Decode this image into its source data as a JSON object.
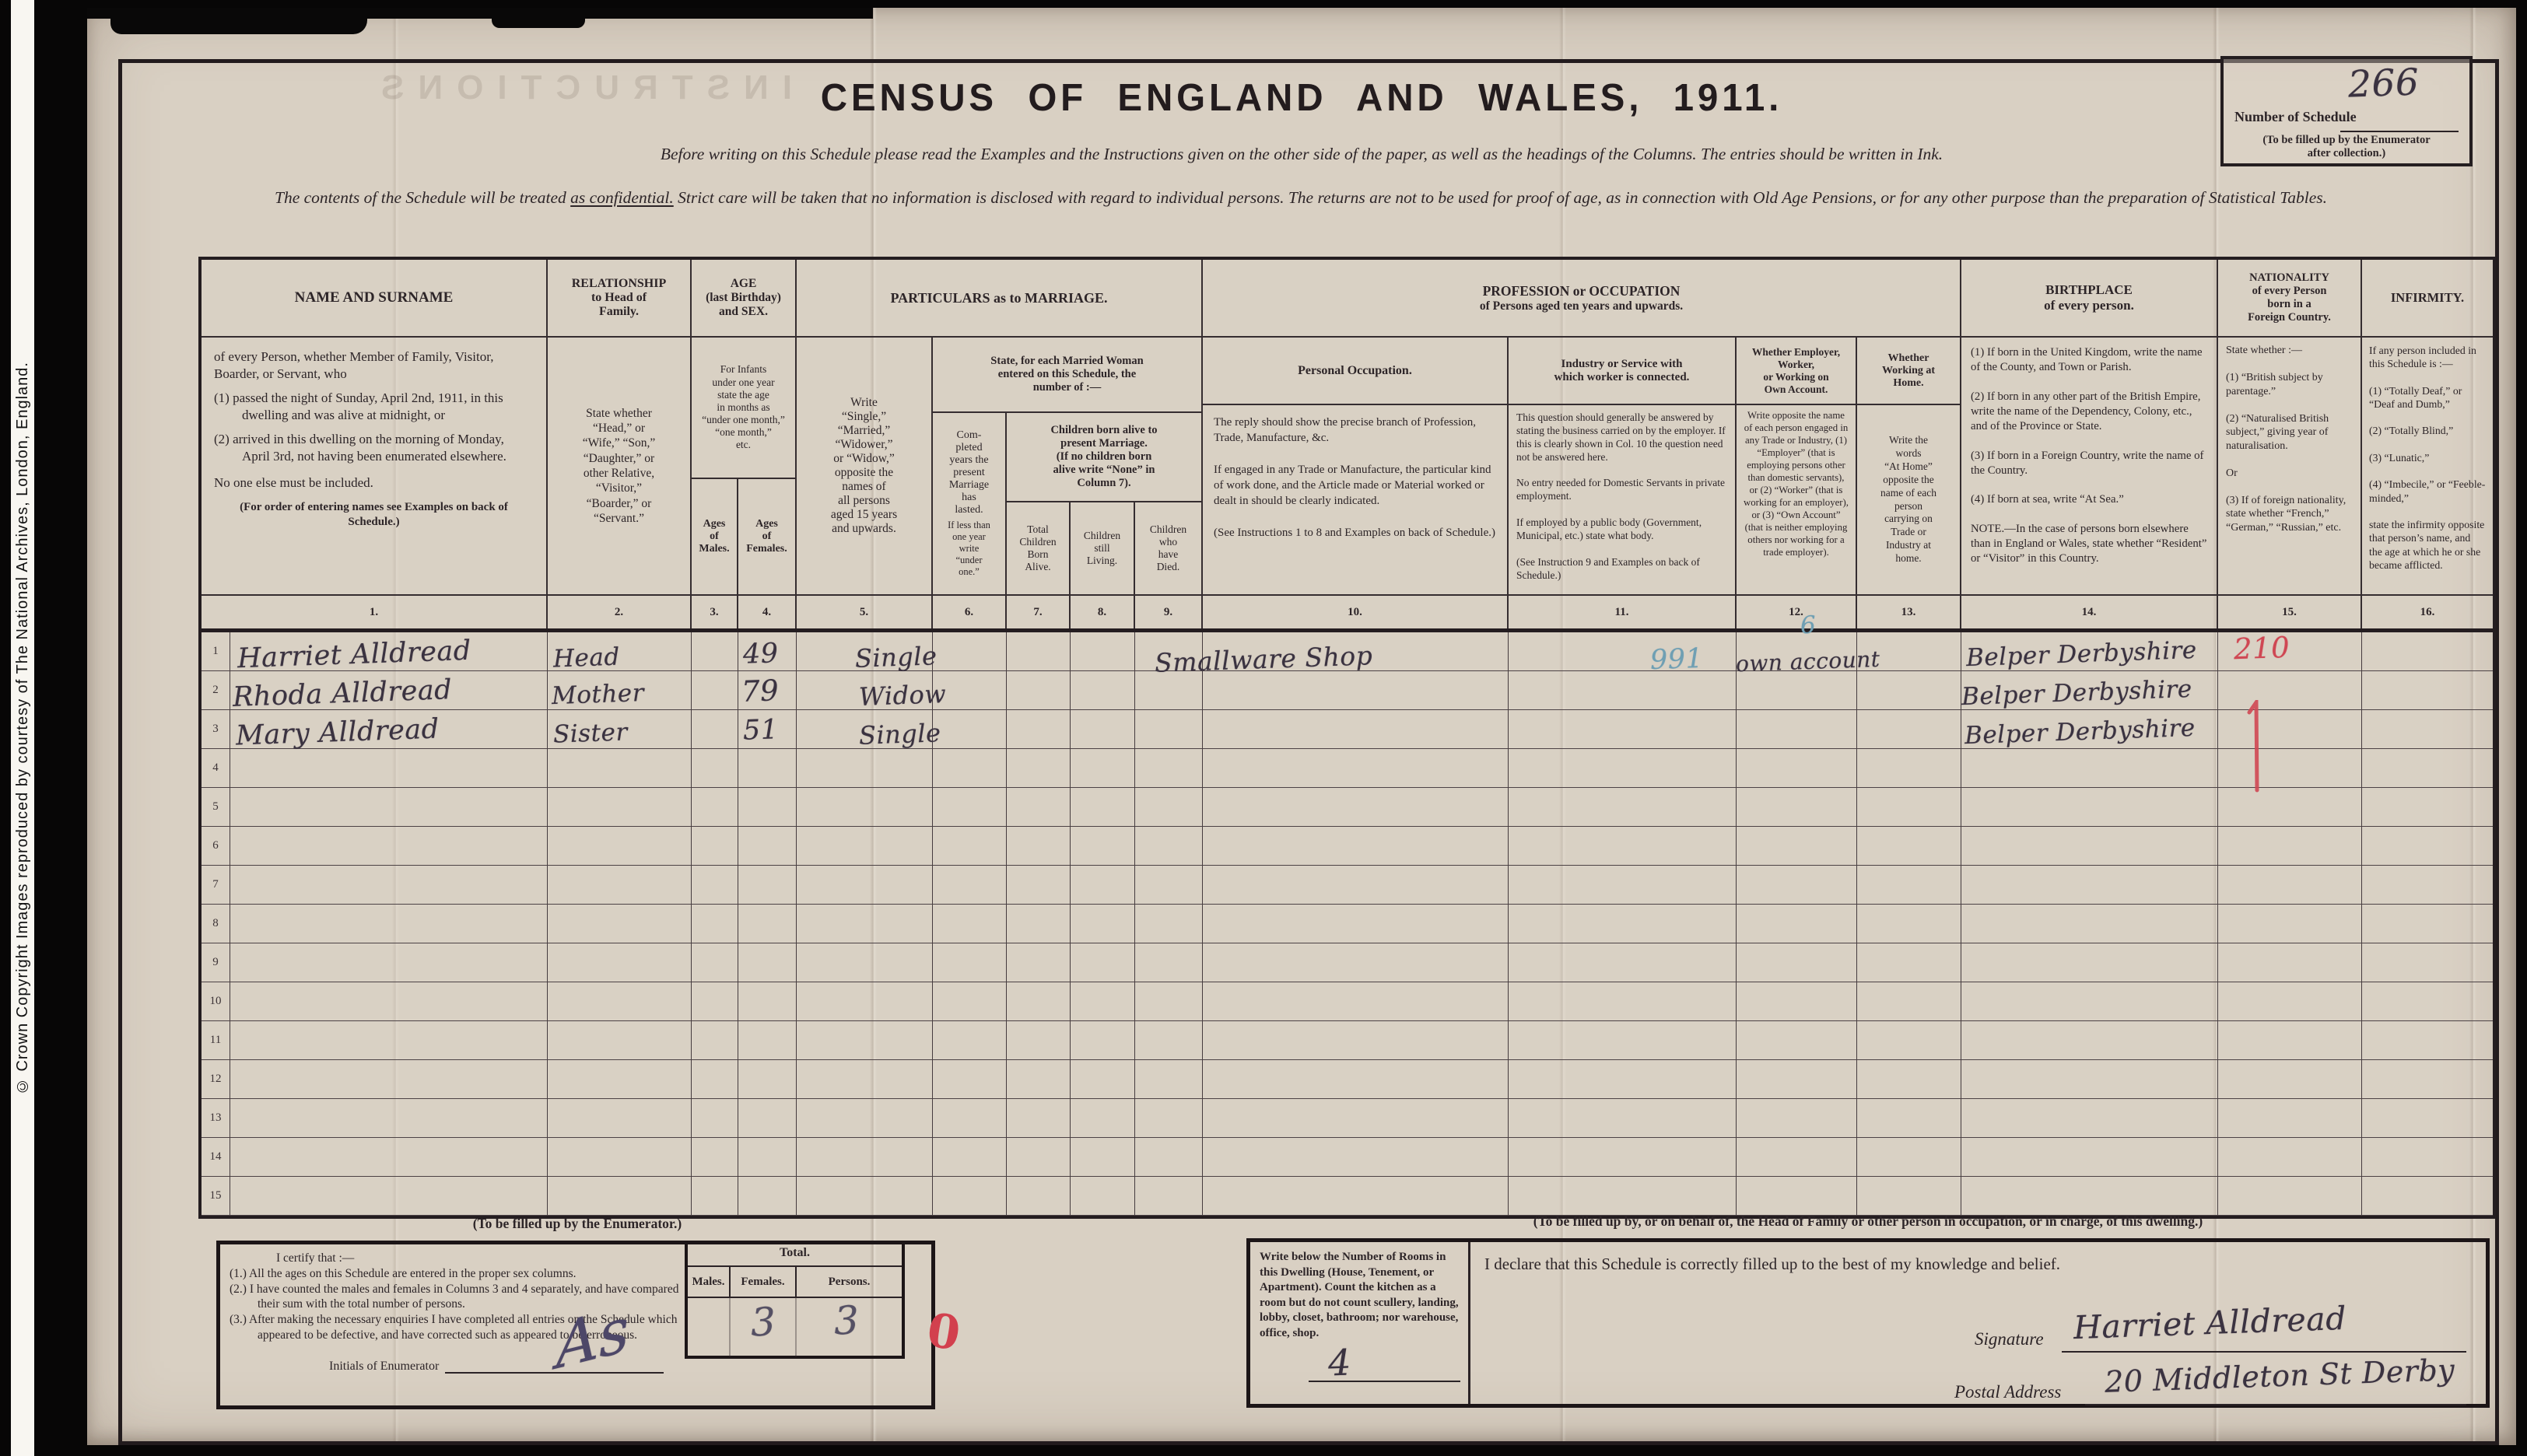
{
  "colors": {
    "paper": "#d9d0c3",
    "ink": "#2d2528",
    "handwriting": "#3a3240",
    "blue_annotation": "#6f9fb3",
    "red_annotation": "#cf4753",
    "pencil": "#8e8779"
  },
  "copyright": "© Crown Copyright Images reproduced by courtesy of The National Archives, London, England.",
  "ghost_text": "INSTRUCTIONS",
  "header": {
    "schedule_box": {
      "label": "Number of Schedule",
      "value": "266",
      "note": "(To be filled up by the Enumerator\nafter collection.)"
    },
    "title": "CENSUS OF ENGLAND AND WALES, 1911.",
    "intro1": "Before writing on this Schedule please read the Examples and the Instructions given on the other side of the paper, as well as the headings of the Columns.  The entries should be written in Ink.",
    "intro2_pre": "The contents of the Schedule will be treated ",
    "intro2_underline": "as confidential.",
    "intro2_post": "  Strict care will be taken that no information is disclosed with regard to individual persons.  The returns are not to be used for proof of age, as in connection with Old Age Pensions, or for any other purpose than the preparation of Statistical Tables."
  },
  "table": {
    "name_group": {
      "title": "NAME AND SURNAME",
      "desc_intro": "of every Person, whether Member of Family, Visitor, Boarder, or Servant, who",
      "item1": "(1) passed the night of Sunday, April 2nd, 1911, in this dwelling and was alive at midnight, or",
      "item2": "(2) arrived in this dwelling on the morning of Monday, April 3rd, not having been enumerated elsewhere.",
      "no_one": "No one else must be included.",
      "note": "(For order of entering names see Examples on back of Schedule.)"
    },
    "relationship": {
      "title": "RELATIONSHIP\nto Head of\nFamily.",
      "desc": "State whether\n“Head,” or\n“Wife,” “Son,”\n“Daughter,” or\nother Relative,\n“Visitor,”\n“Boarder,” or\n“Servant.”"
    },
    "age": {
      "title": "AGE\n(last Birthday)\nand SEX.",
      "infants": "For Infants\nunder one year\nstate the age\nin months as\n“under one month,”\n“one month,”\netc.",
      "males": "Ages\nof\nMales.",
      "females": "Ages\nof\nFemales."
    },
    "marriage": {
      "title": "PARTICULARS as to MARRIAGE.",
      "col5": "Write\n“Single,”\n“Married,”\n“Widower,”\nor “Widow,”\nopposite the\nnames of\nall persons\naged 15 years\nand upwards.",
      "married_woman": "State, for each Married Woman\nentered on this Schedule, the\nnumber of :—",
      "col6_main": "Com-\npleted\nyears the\npresent\nMarriage\nhas\nlasted.",
      "col6_note": "If less than\none year\nwrite\n“under\none.”",
      "children_band": "Children born alive to\npresent Marriage.\n(If no children born\nalive write “None” in\nColumn 7).",
      "col7": "Total\nChildren\nBorn\nAlive.",
      "col8": "Children\nstill\nLiving.",
      "col9": "Children\nwho\nhave\nDied."
    },
    "profession": {
      "title": "PROFESSION or OCCUPATION",
      "subtitle": "of Persons aged ten years and upwards.",
      "col10_title": "Personal Occupation.",
      "col10_desc": [
        "The reply should show the precise branch of Profession, Trade, Manufacture, &c.",
        "If engaged in any Trade or Manufacture, the particular kind of work done, and the Article made or Material worked or dealt in should be clearly indicated.",
        "(See Instructions 1 to 8 and Examples on back of Schedule.)"
      ],
      "col11_title": "Industry or Service with\nwhich worker is connected.",
      "col11_desc": [
        "This question should generally be answered by stating the business carried on by the employer.  If this is clearly shown in Col. 10 the question need not be answered here.",
        "No entry needed for Domestic Servants in private employment.",
        "If employed by a public body (Government, Municipal, etc.) state what body.",
        "(See Instruction 9 and Examples on back of Schedule.)"
      ],
      "col12_title": "Whether Employer,\nWorker,\nor Working on\nOwn Account.",
      "col12_desc": "Write opposite the name of each person engaged in any Trade or Industry, (1) “Employer” (that is employing persons other than domestic servants), or (2) “Worker” (that is working for an employer), or (3) “Own Account” (that is neither employing others nor working for a trade employer).",
      "col13_title": "Whether\nWorking at\nHome.",
      "col13_desc": "Write the\nwords\n“At Home”\nopposite the\nname of each\nperson\ncarrying on\nTrade or\nIndustry at\nhome."
    },
    "birthplace": {
      "title": "BIRTHPLACE\nof every person.",
      "desc": [
        "(1) If born in the United Kingdom, write the name of the County, and Town or Parish.",
        "(2) If born in any other part of the British Empire, write the name of the Dependency, Colony, etc., and of the Province or State.",
        "(3) If born in a Foreign Country, write the name of the Country.",
        "(4) If born at sea, write “At Sea.”",
        "NOTE.—In the case of persons born elsewhere than in England or Wales, state whether “Resident” or “Visitor” in this Country."
      ]
    },
    "nationality": {
      "title": "NATIONALITY\nof every Person\nborn in a\nForeign Country.",
      "desc": [
        "State whether :—",
        "(1) “British subject by parentage.”",
        "(2) “Naturalised British subject,” giving year of naturalisation.",
        "Or",
        "(3) If of foreign nationality, state whether “French,” “German,” “Russian,” etc."
      ]
    },
    "infirmity": {
      "title": "INFIRMITY.",
      "desc": [
        "If any person included in this Schedule is :—",
        "(1) “Totally Deaf,” or “Deaf and Dumb,”",
        "(2) “Totally Blind,”",
        "(3) “Lunatic,”",
        "(4) “Imbecile,” or “Feeble-minded,”",
        "state the infirmity opposite that person’s name, and the age at which he or she became afflicted."
      ]
    },
    "column_numbers": [
      "1.",
      "2.",
      "3.",
      "4.",
      "5.",
      "6.",
      "7.",
      "8.",
      "9.",
      "10.",
      "11.",
      "12.",
      "13.",
      "14.",
      "15.",
      "16."
    ]
  },
  "rows": [
    {
      "num": "1",
      "name": "Harriet Alldread",
      "relationship": "Head",
      "age_female": "49",
      "marriage": "Single",
      "occupation": "Smallware Shop",
      "industry_code": "991",
      "employment": "own account",
      "employment_note": "6",
      "birthplace": "Belper Derbyshire",
      "nationality_note": "210"
    },
    {
      "num": "2",
      "name": "Rhoda Alldread",
      "relationship": "Mother",
      "age_female": "79",
      "marriage": "Widow",
      "birthplace": "Belper Derbyshire",
      "nationality_note": "1"
    },
    {
      "num": "3",
      "name": "Mary Alldread",
      "relationship": "Sister",
      "age_female": "51",
      "marriage": "Single",
      "birthplace": "Belper Derbyshire"
    },
    {
      "num": "4"
    },
    {
      "num": "5"
    },
    {
      "num": "6"
    },
    {
      "num": "7"
    },
    {
      "num": "8"
    },
    {
      "num": "9"
    },
    {
      "num": "10"
    },
    {
      "num": "11"
    },
    {
      "num": "12"
    },
    {
      "num": "13"
    },
    {
      "num": "14"
    },
    {
      "num": "15"
    }
  ],
  "enumerator": {
    "heading": "(To be filled up by the Enumerator.)",
    "certify_intro": "I certify that :—",
    "clause1": "(1.) All the ages on this Schedule are entered in the proper sex columns.",
    "clause2": "(2.) I have counted the males and females in Columns 3 and 4 separately, and have compared their sum with the total number of persons.",
    "clause3": "(3.) After making the necessary enquiries I have completed all entries on the Schedule which appeared to be defective, and have corrected such as appeared to be erroneous.",
    "initials_label": "Initials of Enumerator",
    "initials_value": "As",
    "total_label": "Total.",
    "males_label": "Males.",
    "females_label": "Females.",
    "persons_label": "Persons.",
    "males_value": "",
    "females_value": "3",
    "persons_value": "3",
    "red_mark": "0"
  },
  "household": {
    "heading": "(To be filled up by, or on behalf of, the Head of Family or other person in occupation, or in charge, of this dwelling.)",
    "rooms_text": "Write below the Number of Rooms in this Dwelling (House, Tenement, or Apartment).  Count the kitchen as a room but do not count scullery, landing, lobby, closet, bathroom; nor warehouse, office, shop.",
    "rooms_value": "4",
    "declaration": "I declare that this Schedule is correctly filled up to the best of my knowledge and belief.",
    "signature_label": "Signature",
    "signature_value": "Harriet Alldread",
    "postal_label": "Postal Address",
    "postal_value": "20 Middleton St Derby"
  }
}
